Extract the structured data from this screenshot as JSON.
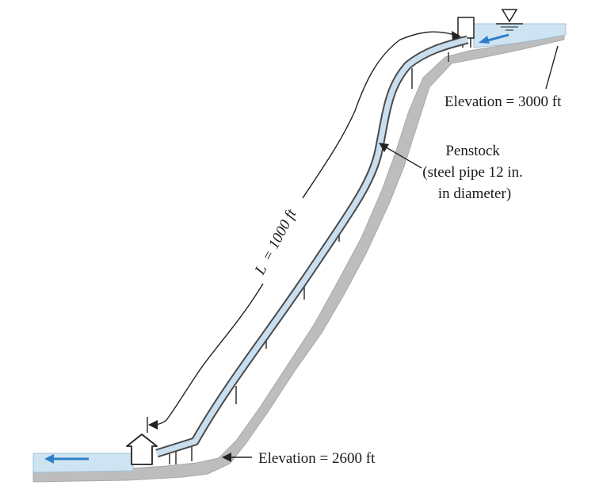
{
  "labels": {
    "upper_elevation": "Elevation = 3000 ft",
    "lower_elevation": "Elevation = 2600 ft",
    "penstock_title": "Penstock",
    "penstock_line2": "(steel pipe 12 in.",
    "penstock_line3": "in diameter)",
    "length_var": "L",
    "length_value": "= 1000 ft"
  },
  "colors": {
    "water": "#cfe4f2",
    "flow_arrow": "#2f7fc6",
    "ground": "#bdbdbd",
    "ground_edge": "#a9a9a9",
    "pipe_fill": "#c9dff0",
    "pipe_edge": "#4a4a4a",
    "line": "#222222"
  },
  "icons": {
    "surface_marker": "free-surface-triangle-icon",
    "flow_upper": "flow-arrow-left-icon",
    "flow_lower": "flow-arrow-left-icon",
    "powerhouse": "powerhouse-icon",
    "intake": "intake-gate-icon"
  }
}
